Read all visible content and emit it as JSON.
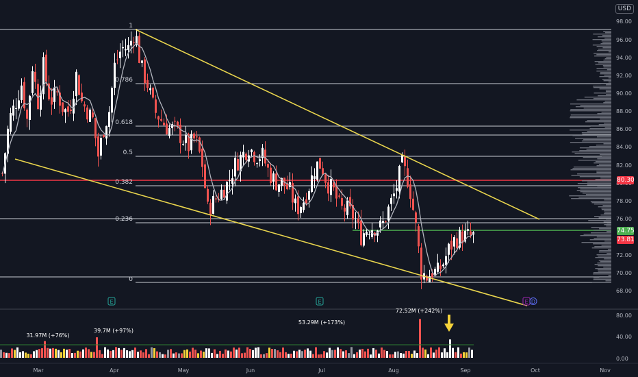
{
  "currency": "USD",
  "price_axis_ticks": [
    "98.00",
    "96.00",
    "94.00",
    "92.00",
    "90.00",
    "88.00",
    "86.00",
    "84.00",
    "82.00",
    "80.00",
    "78.00",
    "76.00",
    "72.00",
    "70.00",
    "68.00"
  ],
  "volume_axis_ticks": [
    "80.00",
    "40.00",
    "0.00"
  ],
  "time_axis_labels": [
    "Mar",
    "Apr",
    "May",
    "Jun",
    "Jul",
    "Aug",
    "Sep",
    "Oct",
    "Nov"
  ],
  "badges": {
    "level_80": "80.30",
    "level_green": "74.75",
    "last_price": "73.81"
  },
  "fib_labels": [
    "1",
    "0.786",
    "0.618",
    "0.5",
    "0.382",
    "0.236",
    "0"
  ],
  "volume_annotations": [
    "31.97M (+76%)",
    "39.7M (+97%)",
    "53.29M (+173%)",
    "72.52M (+242%)"
  ],
  "colors": {
    "background": "#131722",
    "up": "#ffffff",
    "down": "#ef5350",
    "channel": "#e8d44d",
    "fib_line": "#c8ccd4",
    "ma_line": "#b2b5be",
    "red_level": "#f23645",
    "green_level": "#4caf50",
    "volume_yellow": "#f5d33a",
    "volume_red": "#ef5350",
    "volume_white": "#ffffff",
    "volume_gray": "#9598a1",
    "arrow": "#f5d33a"
  },
  "chart_data": {
    "type": "candlestick",
    "price_scale": {
      "min": 67,
      "max": 99
    },
    "volume_scale": {
      "min": 0,
      "max": 90
    },
    "fib_levels": [
      {
        "label": "1",
        "price": 97.1
      },
      {
        "label": "0.786",
        "price": 91.05
      },
      {
        "label": "0.618",
        "price": 86.3
      },
      {
        "label": "0.5",
        "price": 82.95
      },
      {
        "label": "0.382",
        "price": 79.65
      },
      {
        "label": "0.236",
        "price": 75.5
      },
      {
        "label": "0",
        "price": 68.85
      }
    ],
    "extra_levels": [
      {
        "price": 85.3,
        "color": "fib"
      },
      {
        "price": 80.3,
        "color": "red"
      },
      {
        "price": 76.05,
        "color": "fib"
      },
      {
        "price": 74.75,
        "color": "green"
      },
      {
        "price": 69.5,
        "color": "fib"
      }
    ],
    "channel_upper": [
      {
        "date": "2024-04-07",
        "price": 97.1
      },
      {
        "date": "2024-09-30",
        "price": 75.7
      }
    ],
    "channel_lower": [
      {
        "date": "2024-02-23",
        "price": 82.6
      },
      {
        "date": "2024-09-30",
        "price": 66.9
      }
    ],
    "last_price": 73.81
  }
}
